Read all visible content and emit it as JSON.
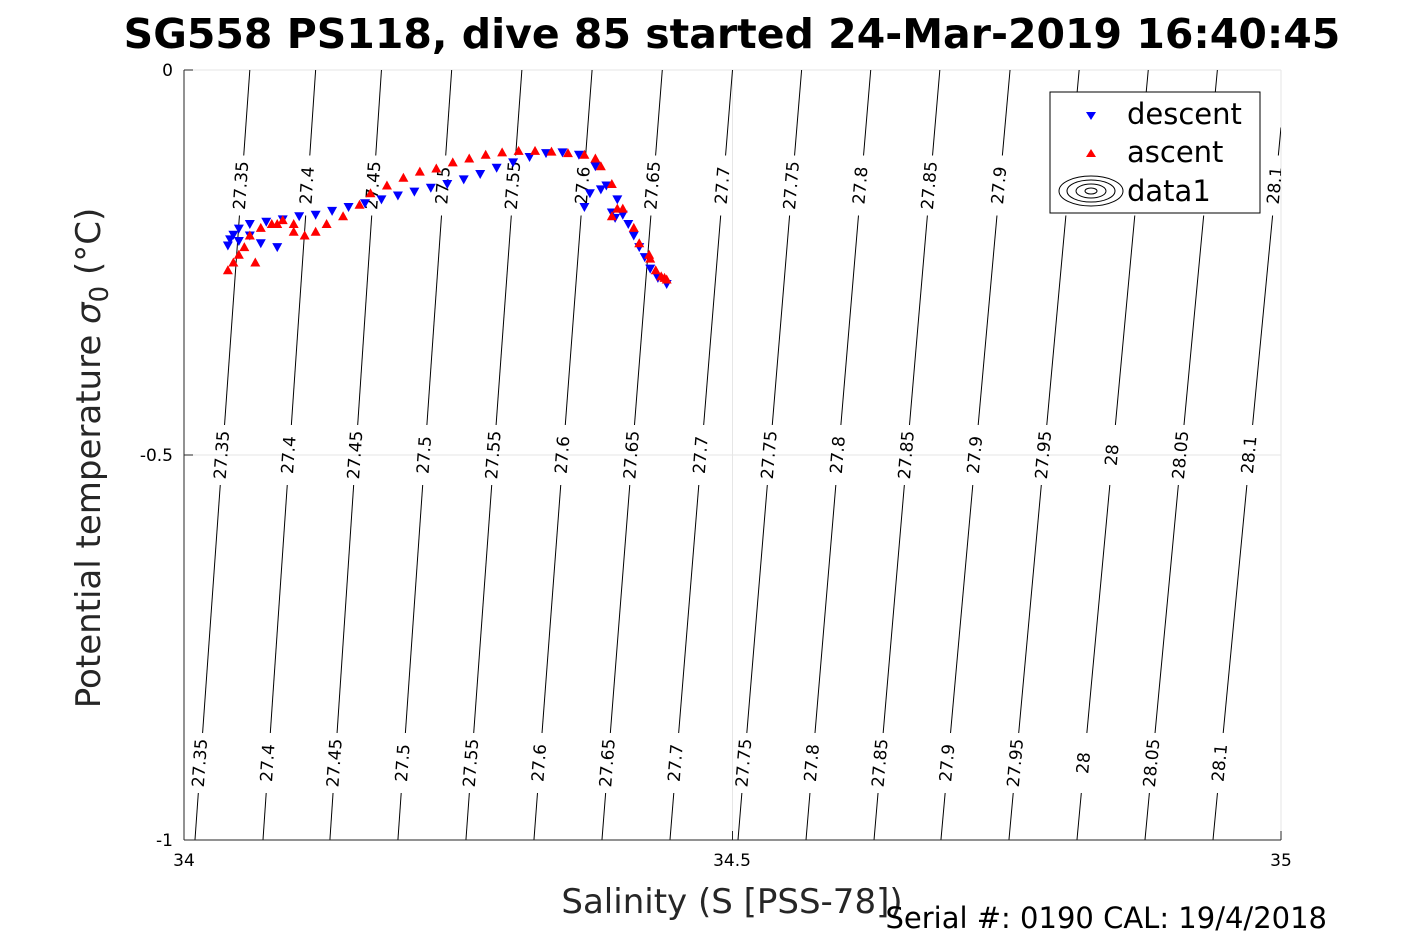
{
  "chart_data": {
    "type": "scatter",
    "title": "SG558 PS118, dive 85 started 24-Mar-2019 16:40:45",
    "xlabel": "Salinity (S [PSS-78])",
    "ylabel": "Potential temperature",
    "ylabel_symbol": "σ",
    "ylabel_subscript": "0",
    "ylabel_unit": "(°C)",
    "xlim": [
      34,
      35
    ],
    "ylim": [
      -1,
      0
    ],
    "xticks": [
      "34",
      "34.5",
      "35"
    ],
    "yticks": [
      "0",
      "-0.5",
      "-1"
    ],
    "grid": true,
    "legend_position": "top-right",
    "legend": [
      "descent",
      "ascent",
      "data1"
    ],
    "footer": "Serial #: 0190  CAL: 19/4/2018",
    "colors": {
      "descent": "#0000ff",
      "ascent": "#ff0000",
      "contour": "#000000"
    },
    "density_contours": {
      "levels": [
        "27.35",
        "27.4",
        "27.45",
        "27.5",
        "27.55",
        "27.6",
        "27.65",
        "27.7",
        "27.75",
        "27.8",
        "27.85",
        "27.9",
        "27.95",
        "28",
        "28.05",
        "28.1"
      ],
      "s_at_theta_0": [
        34.06,
        34.12,
        34.18,
        34.244,
        34.308,
        34.372,
        34.436,
        34.5,
        34.563,
        34.626,
        34.689,
        34.753,
        34.816,
        34.879,
        34.942,
        35.005
      ],
      "s_at_theta_-1": [
        34.01,
        34.072,
        34.133,
        34.195,
        34.257,
        34.319,
        34.381,
        34.443,
        34.505,
        34.567,
        34.629,
        34.69,
        34.752,
        34.814,
        34.876,
        34.938
      ]
    },
    "series": [
      {
        "name": "descent",
        "marker": "triangle-down",
        "x": [
          34.44,
          34.432,
          34.425,
          34.42,
          34.415,
          34.41,
          34.405,
          34.4,
          34.395,
          34.385,
          34.375,
          34.36,
          34.345,
          34.33,
          34.315,
          34.3,
          34.285,
          34.27,
          34.255,
          34.24,
          34.225,
          34.21,
          34.195,
          34.18,
          34.165,
          34.15,
          34.135,
          34.12,
          34.105,
          34.09,
          34.075,
          34.06,
          34.05,
          34.045,
          34.042,
          34.04,
          34.05,
          34.06,
          34.07,
          34.085,
          34.38,
          34.37,
          34.365,
          34.39,
          34.393
        ],
        "y": [
          -0.278,
          -0.27,
          -0.258,
          -0.243,
          -0.23,
          -0.215,
          -0.2,
          -0.188,
          -0.168,
          -0.15,
          -0.125,
          -0.11,
          -0.107,
          -0.108,
          -0.113,
          -0.12,
          -0.127,
          -0.135,
          -0.142,
          -0.148,
          -0.153,
          -0.158,
          -0.163,
          -0.168,
          -0.173,
          -0.178,
          -0.183,
          -0.188,
          -0.19,
          -0.194,
          -0.197,
          -0.2,
          -0.206,
          -0.214,
          -0.22,
          -0.228,
          -0.222,
          -0.215,
          -0.225,
          -0.23,
          -0.155,
          -0.16,
          -0.178,
          -0.185,
          -0.192
        ]
      },
      {
        "name": "ascent",
        "marker": "triangle-up",
        "x": [
          34.04,
          34.045,
          34.05,
          34.055,
          34.06,
          34.07,
          34.08,
          34.09,
          34.1,
          34.11,
          34.12,
          34.13,
          34.145,
          34.16,
          34.17,
          34.185,
          34.2,
          34.215,
          34.23,
          34.245,
          34.26,
          34.275,
          34.29,
          34.305,
          34.32,
          34.335,
          34.35,
          34.365,
          34.375,
          34.38,
          34.39,
          34.4,
          34.41,
          34.415,
          34.425,
          34.43,
          34.435,
          34.438,
          34.44,
          34.39,
          34.395,
          34.424,
          34.1,
          34.085,
          34.065
        ],
        "y": [
          -0.26,
          -0.25,
          -0.24,
          -0.23,
          -0.215,
          -0.205,
          -0.2,
          -0.195,
          -0.21,
          -0.215,
          -0.21,
          -0.2,
          -0.19,
          -0.175,
          -0.16,
          -0.15,
          -0.14,
          -0.132,
          -0.128,
          -0.12,
          -0.115,
          -0.11,
          -0.107,
          -0.105,
          -0.105,
          -0.106,
          -0.108,
          -0.11,
          -0.115,
          -0.125,
          -0.148,
          -0.18,
          -0.205,
          -0.225,
          -0.245,
          -0.26,
          -0.268,
          -0.27,
          -0.272,
          -0.19,
          -0.18,
          -0.24,
          -0.2,
          -0.2,
          -0.25
        ]
      }
    ]
  }
}
